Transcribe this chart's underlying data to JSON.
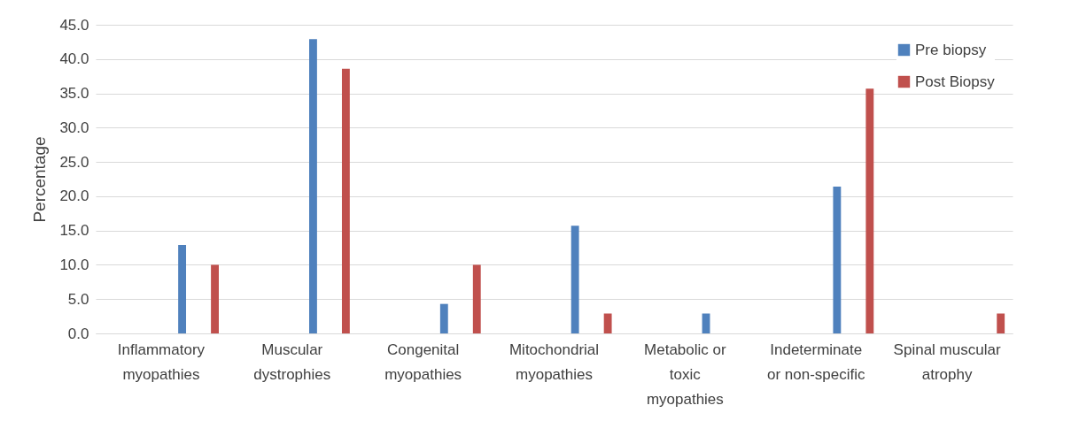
{
  "chart_data": {
    "type": "bar",
    "ylabel": "Percentage",
    "categories": [
      "Inflammatory myopathies",
      "Muscular dystrophies",
      "Congenital myopathies",
      "Mitochondrial myopathies",
      "Metabolic or toxic myopathies",
      "Indeterminate or non-specific",
      "Spinal muscular atrophy"
    ],
    "series": [
      {
        "name": "Pre biopsy",
        "color": "#4f81bd",
        "values": [
          12.9,
          42.9,
          4.3,
          15.7,
          2.9,
          21.4,
          0
        ]
      },
      {
        "name": "Post Biopsy",
        "color": "#c0504d",
        "values": [
          10.0,
          38.6,
          10.0,
          2.9,
          0,
          35.7,
          2.9
        ]
      }
    ],
    "ylim": [
      0,
      45
    ],
    "yticks": [
      {
        "value": 0,
        "label": "0.0"
      },
      {
        "value": 5,
        "label": "5.0"
      },
      {
        "value": 10,
        "label": "10.0"
      },
      {
        "value": 15,
        "label": "15.0"
      },
      {
        "value": 20,
        "label": "20.0"
      },
      {
        "value": 25,
        "label": "25.0"
      },
      {
        "value": 30,
        "label": "30.0"
      },
      {
        "value": 35,
        "label": "35.0"
      },
      {
        "value": 40,
        "label": "40.0"
      },
      {
        "value": 45,
        "label": "45.0"
      }
    ],
    "grid": "y",
    "legend": "top right"
  }
}
